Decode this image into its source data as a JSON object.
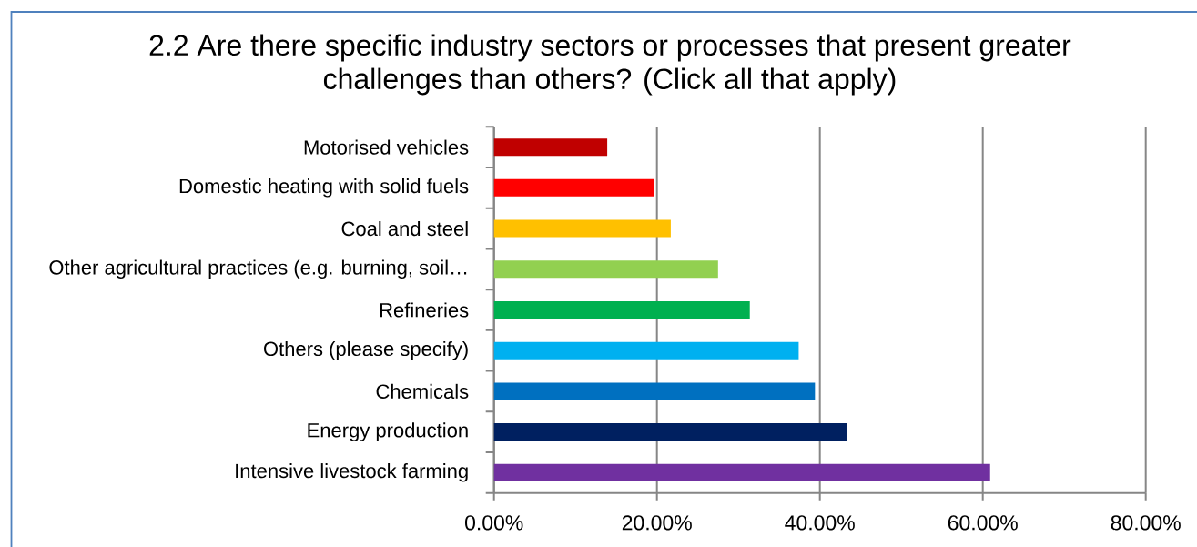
{
  "chart_data": {
    "type": "bar",
    "orientation": "horizontal",
    "title": "2.2 Are there specific industry sectors or processes that present greater challenges than others? (Click all that apply)",
    "categories": [
      "Motorised vehicles",
      "Domestic heating with solid fuels",
      "Coal and steel",
      "Other agricultural practices (e.g. burning, soil…",
      "Refineries",
      "Others (please specify)",
      "Chemicals",
      "Energy production",
      "Intensive livestock farming"
    ],
    "values": [
      13.9,
      19.7,
      21.7,
      27.5,
      31.4,
      37.4,
      39.4,
      43.3,
      60.9
    ],
    "colors": [
      "#c00000",
      "#ff0000",
      "#ffc000",
      "#92d050",
      "#00b050",
      "#00b0f0",
      "#0070c0",
      "#002060",
      "#7030a0"
    ],
    "xlim": [
      0,
      80
    ],
    "xticks": [
      {
        "value": 0,
        "label": "0.00%"
      },
      {
        "value": 20,
        "label": "20.00%"
      },
      {
        "value": 40,
        "label": "40.00%"
      },
      {
        "value": 60,
        "label": "60.00%"
      },
      {
        "value": 80,
        "label": "80.00%"
      }
    ],
    "grid": "x"
  }
}
